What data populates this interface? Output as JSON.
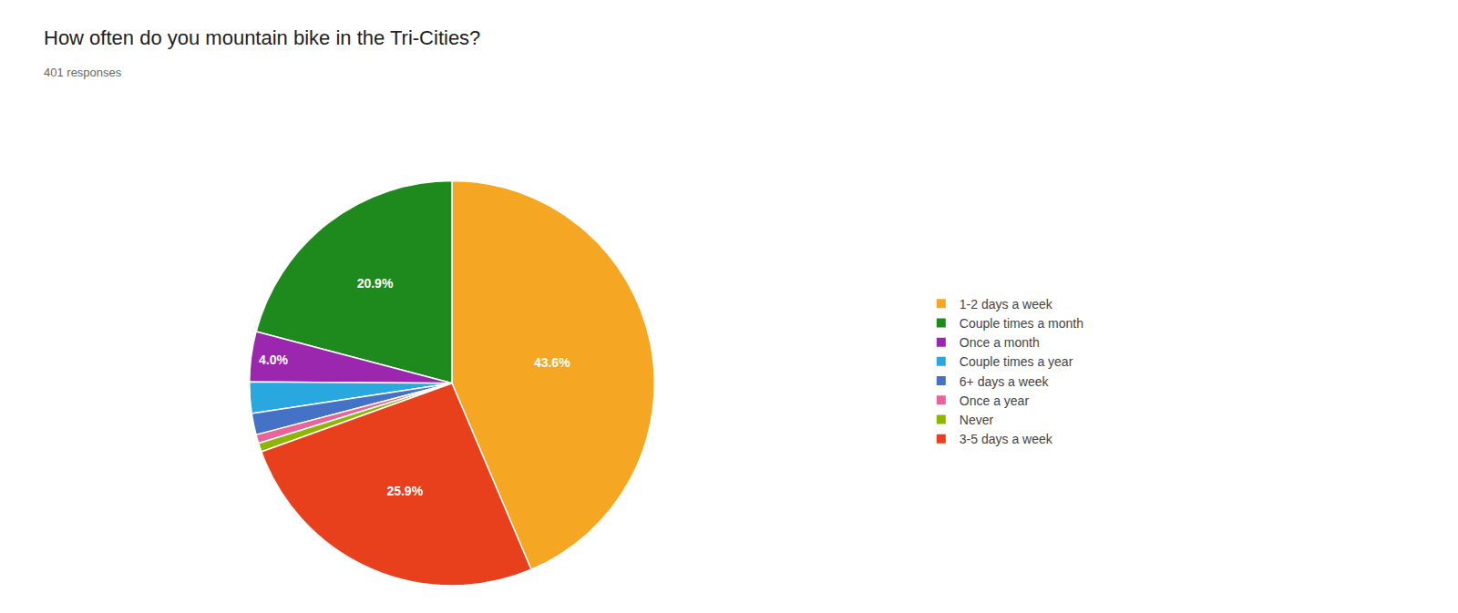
{
  "chart_data": {
    "type": "pie",
    "title": "How often do you mountain bike in the Tri-Cities?",
    "subtitle": "401 responses",
    "categories": [
      "1-2 days a week",
      "Couple times a month",
      "Once a month",
      "Couple times a year",
      "6+ days a week",
      "Once a year",
      "Never",
      "3-5 days a week"
    ],
    "values": [
      43.6,
      20.9,
      4.0,
      2.5,
      1.7,
      0.7,
      0.7,
      25.9
    ],
    "value_labels": [
      "43.6%",
      "20.9%",
      "4.0%",
      null,
      null,
      null,
      null,
      "25.9%"
    ],
    "colors": [
      "#F5A623",
      "#1E8A1E",
      "#9B27AF",
      "#29A8E0",
      "#4472C4",
      "#E8649A",
      "#8DB600",
      "#E8401C"
    ],
    "data_labels": true,
    "legend": "right"
  }
}
